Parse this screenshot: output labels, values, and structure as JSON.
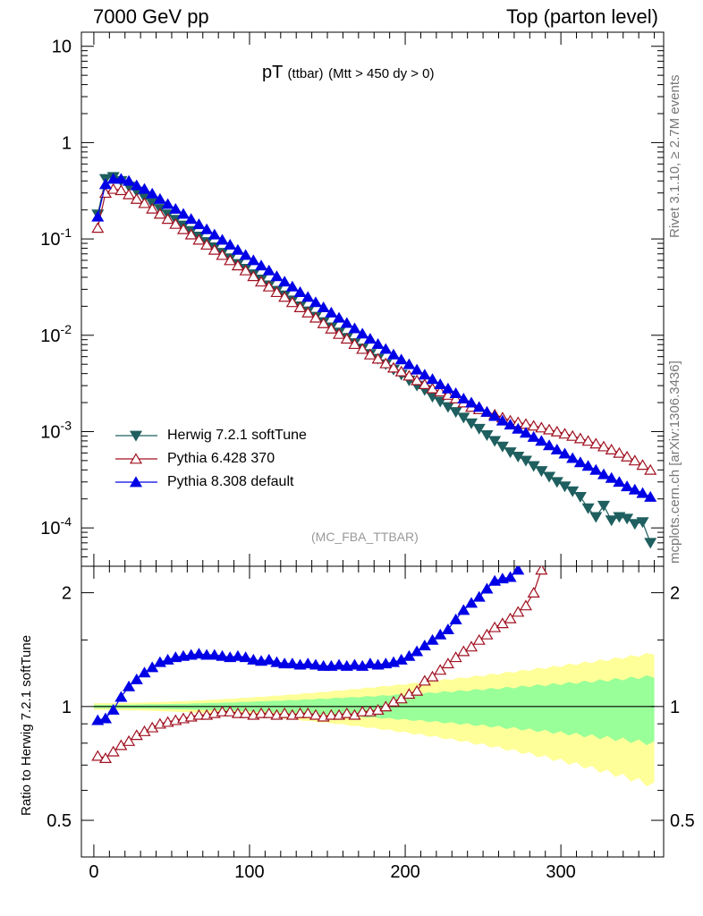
{
  "header": {
    "left": "7000 GeV pp",
    "right": "Top (parton level)"
  },
  "side": {
    "rivet": "Rivet 3.1.10, ≥ 2.7M events",
    "mcplots": "mcplots.cern.ch [arXiv:1306.3436]"
  },
  "plot_title": {
    "main": "pT",
    "sub1": "(ttbar)",
    "sub2": "(Mtt > 450 dy > 0)"
  },
  "analysis_label": "(MC_FBA_TTBAR)",
  "ratio_ylabel": "Ratio to Herwig 7.2.1 softTune",
  "colors": {
    "herwig": "#1f5f5f",
    "pythia6": "#a01020",
    "pythia8": "#0000e6",
    "band_inner": "#99ff99",
    "band_outer": "#ffff99",
    "ref_line": "#000000"
  },
  "chart_data": [
    {
      "type": "line",
      "panel": "main",
      "xlim": [
        -8,
        366
      ],
      "ylim": [
        4e-05,
        14
      ],
      "yscale": "log",
      "yticks": [
        "10",
        "1",
        "10^-1",
        "10^-2",
        "10^-3",
        "10^-4"
      ],
      "legend_position": "bottom-left",
      "series": [
        {
          "name": "Herwig 7.2.1 softTune",
          "marker": "triangle-down",
          "x": [
            2.5,
            7.5,
            12.5,
            17.5,
            22.5,
            27.5,
            32.5,
            37.5,
            42.5,
            47.5,
            52.5,
            57.5,
            62.5,
            67.5,
            72.5,
            77.5,
            82.5,
            87.5,
            92.5,
            97.5,
            102.5,
            107.5,
            112.5,
            117.5,
            122.5,
            127.5,
            132.5,
            137.5,
            142.5,
            147.5,
            152.5,
            157.5,
            162.5,
            167.5,
            172.5,
            177.5,
            182.5,
            187.5,
            192.5,
            197.5,
            202.5,
            207.5,
            212.5,
            217.5,
            222.5,
            227.5,
            232.5,
            237.5,
            242.5,
            247.5,
            252.5,
            257.5,
            262.5,
            267.5,
            272.5,
            277.5,
            282.5,
            287.5,
            292.5,
            297.5,
            302.5,
            307.5,
            312.5,
            317.5,
            322.5,
            327.5,
            332.5,
            337.5,
            342.5,
            347.5,
            352.5,
            357.5
          ],
          "y": [
            0.18,
            0.42,
            0.44,
            0.4,
            0.35,
            0.31,
            0.27,
            0.235,
            0.205,
            0.18,
            0.158,
            0.138,
            0.121,
            0.106,
            0.093,
            0.082,
            0.072,
            0.063,
            0.055,
            0.049,
            0.043,
            0.038,
            0.033,
            0.029,
            0.026,
            0.023,
            0.02,
            0.0177,
            0.0156,
            0.0137,
            0.0121,
            0.0107,
            0.0094,
            0.0083,
            0.0073,
            0.0064,
            0.0057,
            0.005,
            0.0044,
            0.0039,
            0.0034,
            0.003,
            0.0027,
            0.0023,
            0.00205,
            0.0018,
            0.0016,
            0.0014,
            0.00122,
            0.00107,
            0.00092,
            0.0008,
            0.0007,
            0.00061,
            0.00055,
            0.0005,
            0.00044,
            0.00039,
            0.00034,
            0.0003,
            0.00027,
            0.00024,
            0.00021,
            0.00016,
            0.00013,
            0.00017,
            0.00012,
            0.00013,
            0.000125,
            0.00011,
            0.000115,
            7e-05
          ]
        },
        {
          "name": "Pythia 6.428 370",
          "marker": "triangle-up-open",
          "x": [
            2.5,
            7.5,
            12.5,
            17.5,
            22.5,
            27.5,
            32.5,
            37.5,
            42.5,
            47.5,
            52.5,
            57.5,
            62.5,
            67.5,
            72.5,
            77.5,
            82.5,
            87.5,
            92.5,
            97.5,
            102.5,
            107.5,
            112.5,
            117.5,
            122.5,
            127.5,
            132.5,
            137.5,
            142.5,
            147.5,
            152.5,
            157.5,
            162.5,
            167.5,
            172.5,
            177.5,
            182.5,
            187.5,
            192.5,
            197.5,
            202.5,
            207.5,
            212.5,
            217.5,
            222.5,
            227.5,
            232.5,
            237.5,
            242.5,
            247.5,
            252.5,
            257.5,
            262.5,
            267.5,
            272.5,
            277.5,
            282.5,
            287.5,
            292.5,
            297.5,
            302.5,
            307.5,
            312.5,
            317.5,
            322.5,
            327.5,
            332.5,
            337.5,
            342.5,
            347.5,
            352.5,
            357.5
          ],
          "y": [
            0.13,
            0.3,
            0.33,
            0.32,
            0.29,
            0.26,
            0.235,
            0.206,
            0.182,
            0.161,
            0.143,
            0.126,
            0.111,
            0.098,
            0.087,
            0.077,
            0.068,
            0.06,
            0.053,
            0.047,
            0.041,
            0.036,
            0.032,
            0.028,
            0.025,
            0.022,
            0.0195,
            0.0172,
            0.0152,
            0.0133,
            0.0117,
            0.0103,
            0.0092,
            0.0081,
            0.0072,
            0.0063,
            0.0057,
            0.0051,
            0.0046,
            0.0042,
            0.0038,
            0.0034,
            0.0031,
            0.0028,
            0.0026,
            0.0024,
            0.0022,
            0.002,
            0.0018,
            0.0017,
            0.0016,
            0.0015,
            0.0014,
            0.0013,
            0.00125,
            0.0012,
            0.00115,
            0.0011,
            0.00105,
            0.001,
            0.00095,
            0.0009,
            0.00085,
            0.0008,
            0.00075,
            0.0007,
            0.00065,
            0.0006,
            0.00055,
            0.0005,
            0.00045,
            0.0004
          ]
        },
        {
          "name": "Pythia 8.308 default",
          "marker": "triangle-up",
          "x": [
            2.5,
            7.5,
            12.5,
            17.5,
            22.5,
            27.5,
            32.5,
            37.5,
            42.5,
            47.5,
            52.5,
            57.5,
            62.5,
            67.5,
            72.5,
            77.5,
            82.5,
            87.5,
            92.5,
            97.5,
            102.5,
            107.5,
            112.5,
            117.5,
            122.5,
            127.5,
            132.5,
            137.5,
            142.5,
            147.5,
            152.5,
            157.5,
            162.5,
            167.5,
            172.5,
            177.5,
            182.5,
            187.5,
            192.5,
            197.5,
            202.5,
            207.5,
            212.5,
            217.5,
            222.5,
            227.5,
            232.5,
            237.5,
            242.5,
            247.5,
            252.5,
            257.5,
            262.5,
            267.5,
            272.5,
            277.5,
            282.5,
            287.5,
            292.5,
            297.5,
            302.5,
            307.5,
            312.5,
            317.5,
            322.5,
            327.5,
            332.5,
            337.5,
            342.5,
            347.5,
            352.5,
            357.5
          ],
          "y": [
            0.17,
            0.37,
            0.42,
            0.42,
            0.4,
            0.36,
            0.33,
            0.295,
            0.26,
            0.23,
            0.205,
            0.182,
            0.161,
            0.142,
            0.126,
            0.111,
            0.098,
            0.087,
            0.077,
            0.068,
            0.06,
            0.053,
            0.047,
            0.041,
            0.036,
            0.032,
            0.028,
            0.025,
            0.022,
            0.0195,
            0.0172,
            0.0152,
            0.0134,
            0.0118,
            0.0104,
            0.0092,
            0.0081,
            0.0072,
            0.0063,
            0.0056,
            0.005,
            0.0044,
            0.0039,
            0.0035,
            0.0031,
            0.0028,
            0.0025,
            0.0022,
            0.002,
            0.0018,
            0.0016,
            0.00145,
            0.0013,
            0.00118,
            0.00107,
            0.00097,
            0.00088,
            0.0008,
            0.00072,
            0.00065,
            0.00059,
            0.00053,
            0.00048,
            0.00044,
            0.0004,
            0.00036,
            0.00033,
            0.0003,
            0.00027,
            0.00025,
            0.00023,
            0.00021
          ]
        }
      ]
    },
    {
      "type": "line",
      "panel": "ratio",
      "xlabel": "",
      "ylabel": "Ratio to Herwig 7.2.1 softTune",
      "xlim": [
        -8,
        366
      ],
      "ylim": [
        0.4,
        2.35
      ],
      "xticks": [
        "0",
        "100",
        "200",
        "300"
      ],
      "yticks": [
        "0.5",
        "1",
        "2"
      ],
      "series": [
        {
          "name": "Pythia 6.428 370",
          "marker": "triangle-up-open",
          "x": [
            2.5,
            7.5,
            12.5,
            17.5,
            22.5,
            27.5,
            32.5,
            37.5,
            42.5,
            47.5,
            52.5,
            57.5,
            62.5,
            67.5,
            72.5,
            77.5,
            82.5,
            87.5,
            92.5,
            97.5,
            102.5,
            107.5,
            112.5,
            117.5,
            122.5,
            127.5,
            132.5,
            137.5,
            142.5,
            147.5,
            152.5,
            157.5,
            162.5,
            167.5,
            172.5,
            177.5,
            182.5,
            187.5,
            192.5,
            197.5,
            202.5,
            207.5,
            212.5,
            217.5,
            222.5,
            227.5,
            232.5,
            237.5,
            242.5,
            247.5,
            252.5,
            257.5,
            262.5,
            267.5,
            272.5,
            277.5,
            282.5,
            287.5
          ],
          "y": [
            0.74,
            0.73,
            0.76,
            0.79,
            0.81,
            0.84,
            0.86,
            0.88,
            0.9,
            0.91,
            0.92,
            0.93,
            0.94,
            0.95,
            0.95,
            0.96,
            0.97,
            0.97,
            0.96,
            0.96,
            0.95,
            0.96,
            0.96,
            0.95,
            0.96,
            0.95,
            0.96,
            0.96,
            0.95,
            0.94,
            0.95,
            0.95,
            0.96,
            0.95,
            0.97,
            0.97,
            0.98,
            1.0,
            1.03,
            1.05,
            1.08,
            1.1,
            1.17,
            1.2,
            1.25,
            1.3,
            1.35,
            1.4,
            1.44,
            1.5,
            1.55,
            1.62,
            1.66,
            1.71,
            1.78,
            1.85,
            2.0,
            2.3
          ]
        },
        {
          "name": "Pythia 8.308 default",
          "marker": "triangle-up",
          "x": [
            2.5,
            7.5,
            12.5,
            17.5,
            22.5,
            27.5,
            32.5,
            37.5,
            42.5,
            47.5,
            52.5,
            57.5,
            62.5,
            67.5,
            72.5,
            77.5,
            82.5,
            87.5,
            92.5,
            97.5,
            102.5,
            107.5,
            112.5,
            117.5,
            122.5,
            127.5,
            132.5,
            137.5,
            142.5,
            147.5,
            152.5,
            157.5,
            162.5,
            167.5,
            172.5,
            177.5,
            182.5,
            187.5,
            192.5,
            197.5,
            202.5,
            207.5,
            212.5,
            217.5,
            222.5,
            227.5,
            232.5,
            237.5,
            242.5,
            247.5,
            252.5,
            257.5,
            262.5,
            267.5,
            272.5
          ],
          "y": [
            0.92,
            0.93,
            0.98,
            1.06,
            1.13,
            1.18,
            1.23,
            1.27,
            1.31,
            1.33,
            1.35,
            1.36,
            1.37,
            1.38,
            1.37,
            1.37,
            1.36,
            1.35,
            1.36,
            1.35,
            1.33,
            1.32,
            1.33,
            1.31,
            1.3,
            1.3,
            1.29,
            1.3,
            1.29,
            1.28,
            1.28,
            1.29,
            1.28,
            1.29,
            1.28,
            1.3,
            1.29,
            1.3,
            1.31,
            1.33,
            1.36,
            1.4,
            1.45,
            1.5,
            1.55,
            1.6,
            1.7,
            1.8,
            1.88,
            1.95,
            2.05,
            2.15,
            2.18,
            2.2,
            2.3
          ]
        },
        {
          "name": "MC uncertainty band (inner)",
          "x": [
            0,
            360
          ],
          "half_width_start": 0.01,
          "half_width_end": 0.2
        },
        {
          "name": "MC uncertainty band (outer)",
          "x": [
            0,
            360
          ],
          "half_width_start": 0.02,
          "half_width_end": 0.38
        }
      ]
    }
  ]
}
